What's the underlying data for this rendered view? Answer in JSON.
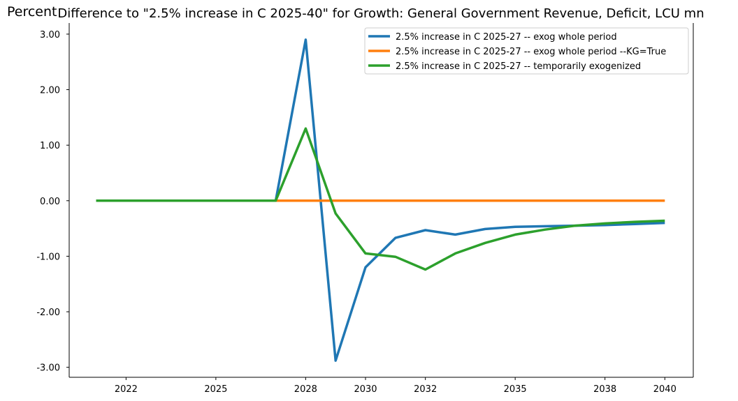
{
  "chart_data": {
    "type": "line",
    "title": "Difference to \"2.5% increase in C 2025-40\" for Growth: General Government Revenue, Deficit, LCU mn",
    "ylabel": "Percent",
    "xlabel": "",
    "x": [
      2021,
      2022,
      2023,
      2024,
      2025,
      2026,
      2027,
      2028,
      2029,
      2030,
      2031,
      2032,
      2033,
      2034,
      2035,
      2036,
      2037,
      2038,
      2039,
      2040
    ],
    "xticks": [
      2022,
      2025,
      2028,
      2030,
      2032,
      2035,
      2038,
      2040
    ],
    "xtick_labels": [
      "2022",
      "2025",
      "2028",
      "2030",
      "2032",
      "2035",
      "2038",
      "2040"
    ],
    "xlim": [
      2020.1,
      2040.95
    ],
    "ylim": [
      -3.18,
      3.2
    ],
    "yticks": [
      3.0,
      2.0,
      1.0,
      0.0,
      -1.0,
      -2.0,
      -3.0
    ],
    "ytick_labels": [
      "3.00",
      "2.00",
      "1.00",
      "0.00",
      "-1.00",
      "-2.00",
      "-3.00"
    ],
    "grid": false,
    "legend_position": "top-right",
    "series": [
      {
        "name": "2.5% increase in C 2025-27 -- exog whole period",
        "color": "#1f77b4",
        "values": [
          0,
          0,
          0,
          0,
          0,
          0,
          0,
          2.9,
          -2.88,
          -1.2,
          -0.67,
          -0.53,
          -0.61,
          -0.51,
          -0.47,
          -0.46,
          -0.45,
          -0.44,
          -0.42,
          -0.4
        ]
      },
      {
        "name": "2.5% increase in C 2025-27 -- exog whole period --KG=True",
        "color": "#ff7f0e",
        "values": [
          0,
          0,
          0,
          0,
          0,
          0,
          0,
          0,
          0,
          0,
          0,
          0,
          0,
          0,
          0,
          0,
          0,
          0,
          0,
          0
        ]
      },
      {
        "name": "2.5% increase in C 2025-27 -- temporarily exogenized",
        "color": "#2ca02c",
        "values": [
          0,
          0,
          0,
          0,
          0,
          0,
          0,
          1.3,
          -0.23,
          -0.95,
          -1.01,
          -1.24,
          -0.95,
          -0.76,
          -0.61,
          -0.52,
          -0.45,
          -0.41,
          -0.38,
          -0.36
        ]
      }
    ]
  }
}
